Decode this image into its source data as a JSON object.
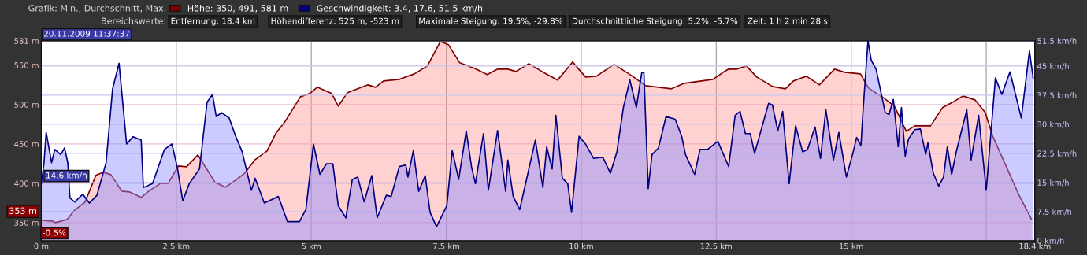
{
  "chart_data": {
    "type": "area",
    "title": "Grafik: Min., Durchschnitt, Max.",
    "subtitle": "Bereichswerte:",
    "legend": "top left",
    "grid": true,
    "marker": "none",
    "line_style": "solid",
    "xlim": [
      0,
      18.4
    ],
    "xticks": [
      {
        "value": 0,
        "label": "0 m"
      },
      {
        "value": 2.5,
        "label": "2.5 km"
      },
      {
        "value": 5,
        "label": "5 km"
      },
      {
        "value": 7.5,
        "label": "7.5 km"
      },
      {
        "value": 10,
        "label": "10 km"
      },
      {
        "value": 12.5,
        "label": "12.5 km"
      },
      {
        "value": 15,
        "label": "15 km"
      },
      {
        "value": 17.5,
        "label": null
      },
      {
        "value": 18.4,
        "label": "18.4 km"
      }
    ],
    "ylim": [
      327,
      581
    ],
    "yticks": [
      {
        "value": 350,
        "label": "350 m"
      },
      {
        "value": 400,
        "label": "400 m"
      },
      {
        "value": 450,
        "label": "450 m"
      },
      {
        "value": 500,
        "label": "500 m"
      },
      {
        "value": 550,
        "label": "550 m"
      },
      {
        "value": 581,
        "label": "581 m"
      }
    ],
    "y2lim": [
      0,
      51.5
    ],
    "y2ticks": [
      {
        "value": 0,
        "label": "0 km/h"
      },
      {
        "value": 7.5,
        "label": "7.5 km/h"
      },
      {
        "value": 15,
        "label": "15 km/h"
      },
      {
        "value": 22.5,
        "label": "22.5 km/h"
      },
      {
        "value": 30,
        "label": "30 km/h"
      },
      {
        "value": 37.5,
        "label": "37.5 km/h"
      },
      {
        "value": 45,
        "label": "45 km/h"
      },
      {
        "value": 51.5,
        "label": "51.5 km/h"
      }
    ],
    "series": [
      {
        "name": "Höhe: 350, 491, 581 m",
        "color": "#800000",
        "x": [
          0,
          0.19,
          0.26,
          0.48,
          0.62,
          0.81,
          1.01,
          1.15,
          1.29,
          1.49,
          1.63,
          1.85,
          1.99,
          2.21,
          2.35,
          2.54,
          2.69,
          2.9,
          3.0,
          3.22,
          3.41,
          3.6,
          3.77,
          3.96,
          4.18,
          4.34,
          4.51,
          4.8,
          4.97,
          5.11,
          5.38,
          5.5,
          5.67,
          6.05,
          6.19,
          6.34,
          6.63,
          6.91,
          7.15,
          7.39,
          7.54,
          7.75,
          8.02,
          8.26,
          8.45,
          8.64,
          8.79,
          9.03,
          9.32,
          9.56,
          9.84,
          10.08,
          10.28,
          10.61,
          10.95,
          11.19,
          11.67,
          11.91,
          12.44,
          12.63,
          12.73,
          12.87,
          13.06,
          13.25,
          13.54,
          13.78,
          13.93,
          14.17,
          14.41,
          14.69,
          14.88,
          15.17,
          15.32,
          15.61,
          15.8,
          16.02,
          16.18,
          16.47,
          16.69,
          16.88,
          17.07,
          17.29,
          17.48,
          17.62,
          17.86,
          18.1,
          18.34
        ],
        "values": [
          353,
          352,
          350,
          354,
          366,
          376,
          410,
          414,
          411,
          390,
          389,
          382,
          390,
          400,
          400,
          422,
          421,
          436,
          425,
          401,
          395,
          404,
          413,
          430,
          441,
          463,
          478,
          510,
          514,
          522,
          514,
          498,
          515,
          525,
          522,
          530,
          532,
          539,
          549,
          580,
          576,
          553,
          546,
          538,
          545,
          545,
          542,
          552,
          540,
          531,
          554,
          535,
          536,
          551,
          536,
          524,
          520,
          527,
          532,
          541,
          545,
          545,
          549,
          535,
          523,
          520,
          530,
          536,
          525,
          545,
          541,
          539,
          521,
          508,
          498,
          466,
          473,
          473,
          496,
          503,
          511,
          506,
          490,
          460,
          423,
          386,
          354
        ]
      },
      {
        "name": "Geschwindigkeit: 3.4, 17.6, 51.5 km/h",
        "color": "#000080",
        "axis": "y2",
        "x": [
          0,
          0.05,
          0.09,
          0.19,
          0.25,
          0.36,
          0.43,
          0.49,
          0.53,
          0.62,
          0.77,
          0.89,
          1.03,
          1.2,
          1.32,
          1.44,
          1.58,
          1.7,
          1.85,
          1.89,
          2.06,
          2.28,
          2.42,
          2.52,
          2.62,
          2.74,
          2.93,
          3.07,
          3.17,
          3.24,
          3.34,
          3.48,
          3.6,
          3.72,
          3.89,
          3.96,
          4.13,
          4.39,
          4.56,
          4.78,
          4.9,
          5.04,
          5.16,
          5.28,
          5.4,
          5.5,
          5.64,
          5.76,
          5.86,
          5.98,
          6.12,
          6.22,
          6.39,
          6.48,
          6.63,
          6.75,
          6.79,
          6.89,
          6.99,
          7.11,
          7.2,
          7.32,
          7.51,
          7.61,
          7.73,
          7.87,
          7.97,
          8.04,
          8.19,
          8.28,
          8.45,
          8.6,
          8.64,
          8.74,
          8.86,
          9.15,
          9.29,
          9.36,
          9.46,
          9.53,
          9.65,
          9.75,
          9.82,
          9.96,
          10.08,
          10.23,
          10.4,
          10.54,
          10.66,
          10.78,
          10.9,
          11.02,
          11.12,
          11.16,
          11.24,
          11.31,
          11.43,
          11.57,
          11.74,
          11.86,
          11.93,
          12.1,
          12.2,
          12.34,
          12.53,
          12.73,
          12.85,
          12.94,
          13.04,
          13.13,
          13.21,
          13.47,
          13.54,
          13.64,
          13.73,
          13.85,
          13.97,
          14.1,
          14.19,
          14.33,
          14.43,
          14.53,
          14.67,
          14.77,
          14.91,
          15.03,
          15.1,
          15.18,
          15.22,
          15.31,
          15.37,
          15.46,
          15.63,
          15.7,
          15.78,
          15.87,
          15.93,
          16.0,
          16.06,
          16.18,
          16.28,
          16.38,
          16.42,
          16.52,
          16.62,
          16.71,
          16.78,
          16.86,
          16.95,
          17.14,
          17.22,
          17.36,
          17.5,
          17.67,
          17.79,
          17.94,
          18.15,
          18.3,
          18.37
        ],
        "values": [
          14.6,
          20.1,
          27.9,
          20.1,
          23.5,
          22.2,
          23.9,
          20.1,
          11.0,
          10.0,
          12.0,
          9.7,
          11.7,
          20.1,
          39.1,
          45.7,
          24.9,
          26.8,
          25.9,
          13.7,
          14.7,
          23.5,
          24.9,
          18.8,
          10.3,
          14.7,
          18.5,
          35.7,
          37.7,
          32.0,
          33.0,
          31.6,
          26.9,
          22.9,
          13.0,
          16.1,
          9.7,
          11.4,
          4.9,
          4.9,
          8.0,
          24.9,
          17.1,
          19.8,
          19.8,
          9.0,
          5.9,
          15.8,
          16.4,
          10.0,
          16.8,
          5.9,
          11.7,
          11.4,
          19.1,
          19.5,
          16.4,
          23.2,
          12.7,
          16.8,
          7.3,
          3.6,
          9.0,
          23.2,
          15.8,
          28.3,
          18.8,
          14.7,
          27.6,
          13.0,
          28.4,
          12.7,
          20.8,
          11.4,
          8.0,
          25.9,
          13.7,
          24.2,
          18.5,
          32.3,
          16.1,
          14.7,
          7.3,
          26.9,
          24.9,
          21.2,
          21.5,
          17.4,
          22.9,
          34.3,
          41.4,
          34.3,
          43.3,
          43.3,
          13.4,
          22.2,
          23.9,
          32.0,
          31.3,
          26.9,
          22.2,
          17.1,
          23.5,
          23.5,
          25.6,
          19.1,
          32.3,
          33.3,
          27.6,
          27.6,
          22.5,
          35.4,
          35.0,
          28.3,
          33.3,
          14.7,
          29.6,
          22.9,
          23.5,
          29.3,
          21.2,
          33.7,
          20.8,
          27.9,
          16.4,
          22.5,
          26.6,
          24.5,
          33.7,
          51.5,
          46.5,
          44.2,
          33.0,
          32.5,
          36.4,
          24.2,
          34.3,
          21.8,
          26.2,
          28.6,
          28.8,
          22.2,
          25.2,
          17.4,
          14.1,
          16.4,
          24.2,
          17.1,
          23.2,
          33.7,
          20.8,
          32.3,
          13.0,
          41.9,
          37.7,
          43.5,
          31.6,
          48.9,
          41.8
        ]
      }
    ],
    "annotations": [
      "Entfernung: 18.4 km",
      "Höhendifferenz: 525 m, -523 m",
      "Maximale Steigung: 19.5%, -29.8%",
      "Durchschnittliche Steigung: 5.2%, -5.7%",
      "Zeit: 1 h 2 min 28 s",
      "20.11.2009 11:37:37",
      "14.6 km/h",
      "-0.5%",
      {
        "text": "353 m",
        "x": 0,
        "y": 353
      }
    ]
  }
}
